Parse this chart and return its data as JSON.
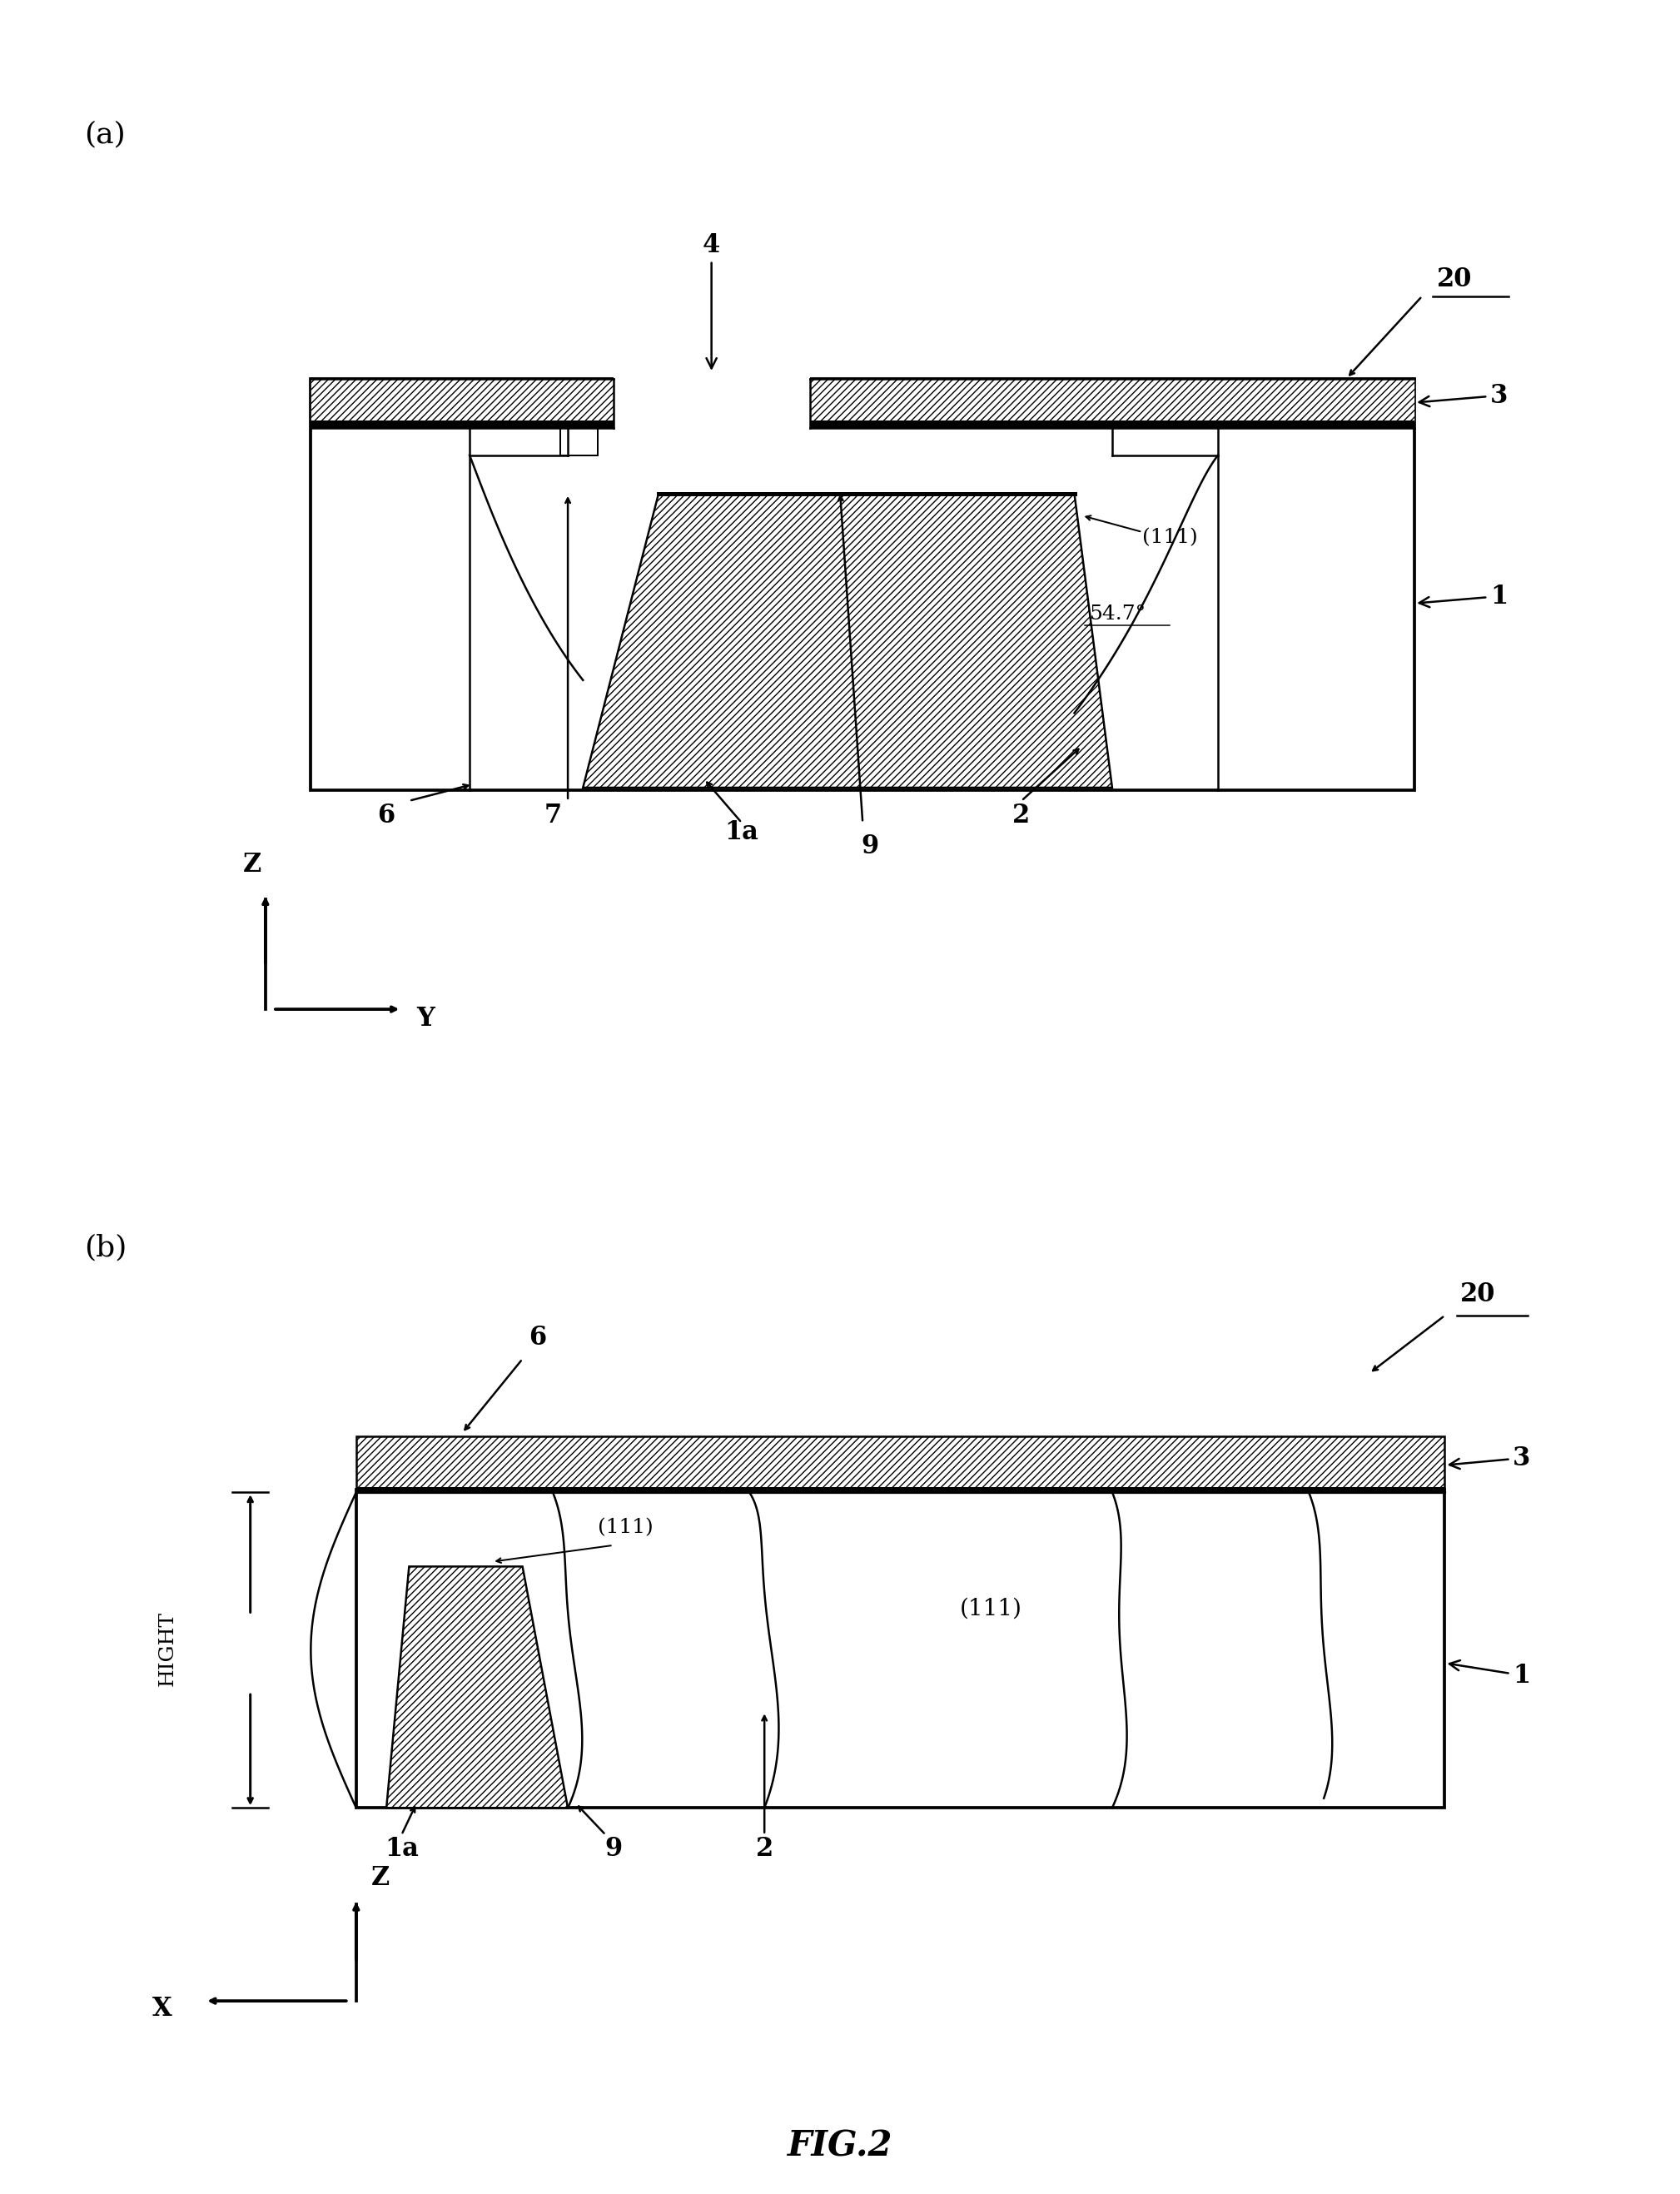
{
  "bg_color": "#ffffff",
  "fig_width": 20.18,
  "fig_height": 26.35,
  "panel_a_label": "(a)",
  "panel_b_label": "(b)",
  "title": "FIG.2",
  "lw": 1.8
}
